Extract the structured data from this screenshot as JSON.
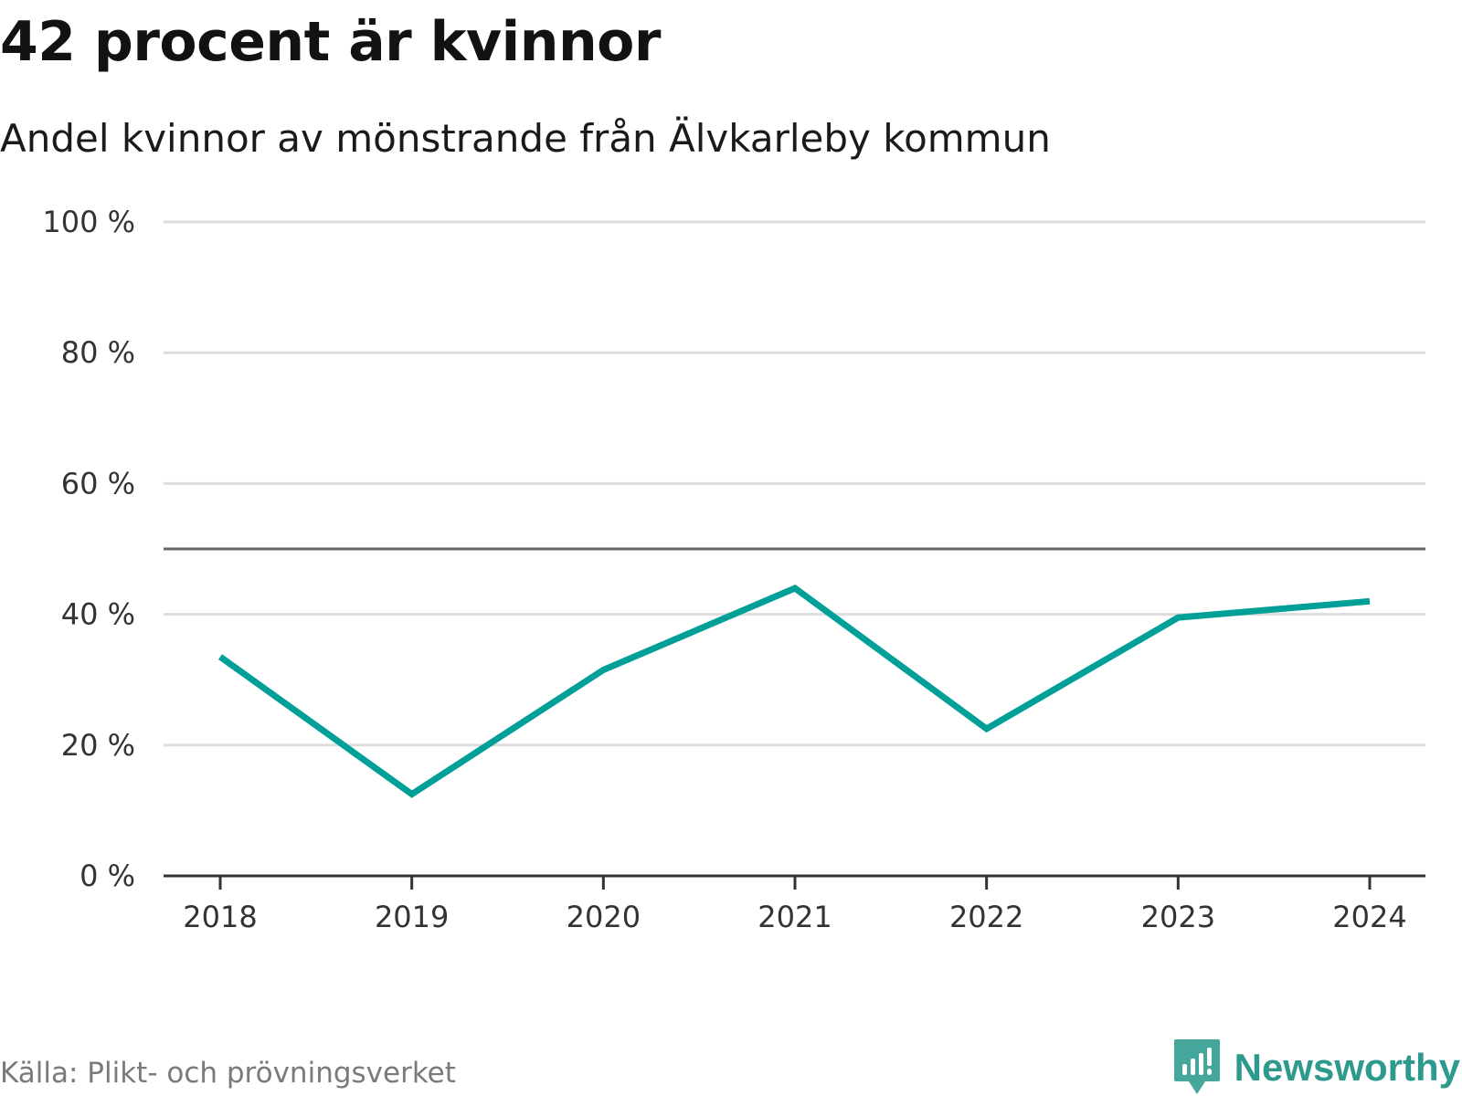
{
  "header": {
    "title": "42 procent är kvinnor",
    "subtitle": "Andel kvinnor av mönstrande från Älvkarleby kommun"
  },
  "footer": {
    "source": "Källa: Plikt- och prövningsverket",
    "brand": "Newsworthy"
  },
  "colors": {
    "line": "#00a099",
    "grid": "#dddddd",
    "axis": "#333333",
    "reference": "#666666",
    "brand": "#2e9a8e"
  },
  "chart_data": {
    "type": "line",
    "title": "42 procent är kvinnor",
    "subtitle": "Andel kvinnor av mönstrande från Älvkarleby kommun",
    "xlabel": "",
    "ylabel": "",
    "x": [
      "2018",
      "2019",
      "2020",
      "2021",
      "2022",
      "2023",
      "2024"
    ],
    "series": [
      {
        "name": "Andel kvinnor",
        "values": [
          33.5,
          12.5,
          31.5,
          44,
          22.5,
          39.5,
          42
        ]
      }
    ],
    "ylim": [
      0,
      100
    ],
    "yticks": [
      0,
      20,
      40,
      60,
      80,
      100
    ],
    "ytick_labels": [
      "0 %",
      "20 %",
      "40 %",
      "60 %",
      "80 %",
      "100 %"
    ],
    "reference_line": 50,
    "grid": true,
    "legend": "none"
  }
}
